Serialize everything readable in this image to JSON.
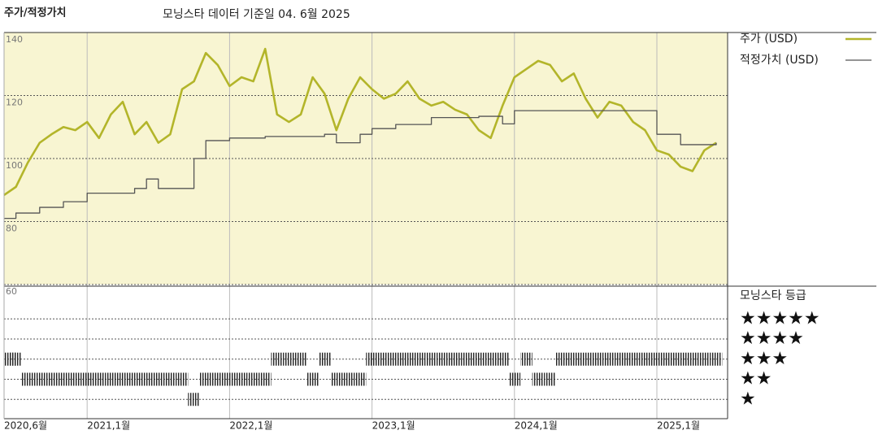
{
  "chart_data": {
    "type": "line",
    "title": "주가/적정가치",
    "subtitle": "모닝스타 데이터 기준일 04. 6월 2025",
    "x": [
      "2020-06",
      "2020-07",
      "2020-08",
      "2020-09",
      "2020-10",
      "2020-11",
      "2020-12",
      "2021-01",
      "2021-02",
      "2021-03",
      "2021-04",
      "2021-05",
      "2021-06",
      "2021-07",
      "2021-08",
      "2021-09",
      "2021-10",
      "2021-11",
      "2021-12",
      "2022-01",
      "2022-02",
      "2022-03",
      "2022-04",
      "2022-05",
      "2022-06",
      "2022-07",
      "2022-08",
      "2022-09",
      "2022-10",
      "2022-11",
      "2022-12",
      "2023-01",
      "2023-02",
      "2023-03",
      "2023-04",
      "2023-05",
      "2023-06",
      "2023-07",
      "2023-08",
      "2023-09",
      "2023-10",
      "2023-11",
      "2023-12",
      "2024-01",
      "2024-02",
      "2024-03",
      "2024-04",
      "2024-05",
      "2024-06",
      "2024-07",
      "2024-08",
      "2024-09",
      "2024-10",
      "2024-11",
      "2024-12",
      "2025-01",
      "2025-02",
      "2025-03",
      "2025-04",
      "2025-05",
      "2025-06"
    ],
    "xlim": [
      "2020-06",
      "2025-06"
    ],
    "xticks": [
      {
        "value": "2020-06",
        "label": "2020,6월"
      },
      {
        "value": "2021-01",
        "label": "2021,1월"
      },
      {
        "value": "2022-01",
        "label": "2022,1월"
      },
      {
        "value": "2023-01",
        "label": "2023,1월"
      },
      {
        "value": "2024-01",
        "label": "2024,1월"
      },
      {
        "value": "2025-01",
        "label": "2025,1월"
      }
    ],
    "ylim": [
      60,
      140
    ],
    "yticks": [
      60,
      80,
      100,
      120,
      140
    ],
    "y2lim": [
      0,
      6
    ],
    "y2ticks": [
      {
        "value": 5,
        "label": "★★★★★"
      },
      {
        "value": 4,
        "label": "★★★★"
      },
      {
        "value": 3,
        "label": "★★★"
      },
      {
        "value": 2,
        "label": "★★"
      },
      {
        "value": 1,
        "label": "★"
      }
    ],
    "grid": true,
    "series": [
      {
        "name": "주가 (USD)",
        "color": "#b3b52a",
        "values": [
          88.4,
          91,
          98.7,
          105,
          107.7,
          110,
          109,
          111.6,
          106.5,
          114,
          118,
          107.7,
          111.6,
          105,
          107.7,
          122,
          124.5,
          133.5,
          129.7,
          123,
          125.8,
          124.5,
          134.8,
          114,
          111.6,
          114,
          125.8,
          120.6,
          109,
          119,
          125.8,
          122,
          119,
          120.6,
          124.5,
          119,
          116.8,
          118,
          115.5,
          114,
          109,
          106.5,
          116.8,
          125.8,
          128.4,
          131,
          129.7,
          124.5,
          127,
          119,
          113,
          118,
          116.8,
          111.6,
          109,
          102.6,
          101.3,
          97.4,
          96,
          102.6,
          105
        ]
      },
      {
        "name": "적정가치 (USD)",
        "color": "#555555",
        "step": true,
        "values": [
          81,
          82.7,
          82.7,
          84.5,
          84.5,
          86.3,
          86.3,
          89,
          89,
          89,
          89,
          90.5,
          93.5,
          90.5,
          90.5,
          90.5,
          100,
          105.7,
          105.7,
          106.5,
          106.5,
          106.5,
          107,
          107,
          107,
          107,
          107,
          107.7,
          105,
          105,
          107.7,
          109.5,
          109.5,
          110.8,
          110.8,
          110.8,
          113,
          113,
          113,
          113,
          113.4,
          113.4,
          111,
          115.2,
          115.2,
          115.2,
          115.2,
          115.2,
          115.2,
          115.2,
          115.2,
          115.2,
          115.2,
          115.2,
          115.2,
          107.7,
          107.7,
          104.4,
          104.4,
          104.4,
          105
        ]
      },
      {
        "name": "모닝스타 등급",
        "color": "#222222",
        "axis": "y2",
        "values": [
          3,
          3,
          2,
          2,
          2,
          2,
          2,
          2,
          2,
          2,
          2,
          2,
          2,
          2,
          2,
          2,
          1,
          2,
          2,
          2,
          2,
          2,
          2,
          3,
          3,
          3,
          2,
          3,
          2,
          2,
          2,
          3,
          3,
          3,
          3,
          3,
          3,
          3,
          3,
          3,
          3,
          3,
          3,
          2,
          3,
          2,
          2,
          3,
          3,
          3,
          3,
          3,
          3,
          3,
          3,
          3,
          3,
          3,
          3,
          3,
          3
        ]
      }
    ]
  }
}
